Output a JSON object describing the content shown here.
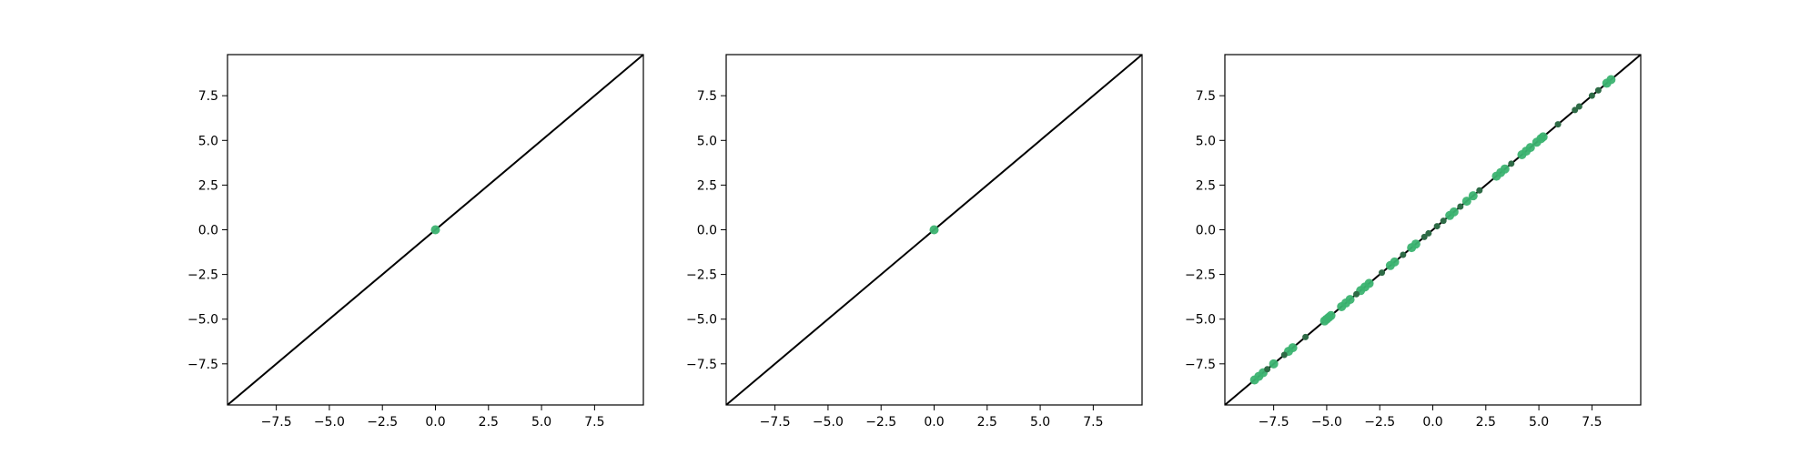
{
  "chart_data": [
    {
      "type": "scatter",
      "title": "",
      "xlabel": "",
      "ylabel": "",
      "xlim": [
        -9.8,
        9.8
      ],
      "ylim": [
        -9.8,
        9.8
      ],
      "xticks": [
        -7.5,
        -5.0,
        -2.5,
        0.0,
        2.5,
        5.0,
        7.5
      ],
      "xtick_labels": [
        "−7.5",
        "−5.0",
        "−2.5",
        "0.0",
        "2.5",
        "5.0",
        "7.5"
      ],
      "yticks": [
        7.5,
        5.0,
        2.5,
        0.0,
        -2.5,
        -5.0,
        -7.5
      ],
      "ytick_labels": [
        "7.5",
        "5.0",
        "2.5",
        "0.0",
        "−2.5",
        "−5.0",
        "−7.5"
      ],
      "grid": false,
      "reference_line": {
        "from": [
          -9.8,
          -9.8
        ],
        "to": [
          9.8,
          9.8
        ],
        "color": "#000000"
      },
      "series": [
        {
          "color": "#3cb371",
          "points": [
            [
              0.0,
              0.0
            ]
          ]
        }
      ]
    },
    {
      "type": "scatter",
      "title": "",
      "xlabel": "",
      "ylabel": "",
      "xlim": [
        -9.8,
        9.8
      ],
      "ylim": [
        -9.8,
        9.8
      ],
      "xticks": [
        -7.5,
        -5.0,
        -2.5,
        0.0,
        2.5,
        5.0,
        7.5
      ],
      "xtick_labels": [
        "−7.5",
        "−5.0",
        "−2.5",
        "0.0",
        "2.5",
        "5.0",
        "7.5"
      ],
      "yticks": [
        7.5,
        5.0,
        2.5,
        0.0,
        -2.5,
        -5.0,
        -7.5
      ],
      "ytick_labels": [
        "7.5",
        "5.0",
        "2.5",
        "0.0",
        "−2.5",
        "−5.0",
        "−7.5"
      ],
      "grid": false,
      "reference_line": {
        "from": [
          -9.8,
          -9.8
        ],
        "to": [
          9.8,
          9.8
        ],
        "color": "#000000"
      },
      "series": [
        {
          "color": "#3cb371",
          "points": [
            [
              0.0,
              0.0
            ]
          ]
        }
      ]
    },
    {
      "type": "scatter",
      "title": "",
      "xlabel": "",
      "ylabel": "",
      "xlim": [
        -9.8,
        9.8
      ],
      "ylim": [
        -9.8,
        9.8
      ],
      "xticks": [
        -7.5,
        -5.0,
        -2.5,
        0.0,
        2.5,
        5.0,
        7.5
      ],
      "xtick_labels": [
        "−7.5",
        "−5.0",
        "−2.5",
        "0.0",
        "2.5",
        "5.0",
        "7.5"
      ],
      "yticks": [
        7.5,
        5.0,
        2.5,
        0.0,
        -2.5,
        -5.0,
        -7.5
      ],
      "ytick_labels": [
        "7.5",
        "5.0",
        "2.5",
        "0.0",
        "−2.5",
        "−5.0",
        "−7.5"
      ],
      "grid": false,
      "reference_line": {
        "from": [
          -9.8,
          -9.8
        ],
        "to": [
          9.8,
          9.8
        ],
        "color": "#000000"
      },
      "series": [
        {
          "color": "#3cb371",
          "points": [
            [
              -8.4,
              -8.4
            ],
            [
              -8.2,
              -8.2
            ],
            [
              -8.0,
              -8.0
            ],
            [
              -7.5,
              -7.5
            ],
            [
              -6.8,
              -6.8
            ],
            [
              -6.6,
              -6.6
            ],
            [
              -5.1,
              -5.1
            ],
            [
              -5.0,
              -5.0
            ],
            [
              -4.9,
              -4.9
            ],
            [
              -4.8,
              -4.8
            ],
            [
              -4.3,
              -4.3
            ],
            [
              -4.1,
              -4.1
            ],
            [
              -3.9,
              -3.9
            ],
            [
              -3.4,
              -3.4
            ],
            [
              -3.2,
              -3.2
            ],
            [
              -3.0,
              -3.0
            ],
            [
              -2.0,
              -2.0
            ],
            [
              -1.8,
              -1.8
            ],
            [
              -1.0,
              -1.0
            ],
            [
              -0.8,
              -0.8
            ],
            [
              0.8,
              0.8
            ],
            [
              1.0,
              1.0
            ],
            [
              1.6,
              1.6
            ],
            [
              1.9,
              1.9
            ],
            [
              3.0,
              3.0
            ],
            [
              3.2,
              3.2
            ],
            [
              3.4,
              3.4
            ],
            [
              4.2,
              4.2
            ],
            [
              4.4,
              4.4
            ],
            [
              4.6,
              4.6
            ],
            [
              4.9,
              4.9
            ],
            [
              5.1,
              5.1
            ],
            [
              5.2,
              5.2
            ],
            [
              8.2,
              8.2
            ],
            [
              8.4,
              8.4
            ]
          ]
        },
        {
          "color": "#2e6b46",
          "points": [
            [
              -7.8,
              -7.8
            ],
            [
              -7.0,
              -7.0
            ],
            [
              -6.0,
              -6.0
            ],
            [
              -3.6,
              -3.6
            ],
            [
              -2.4,
              -2.4
            ],
            [
              -1.4,
              -1.4
            ],
            [
              -0.4,
              -0.4
            ],
            [
              -0.2,
              -0.2
            ],
            [
              0.2,
              0.2
            ],
            [
              0.5,
              0.5
            ],
            [
              1.3,
              1.3
            ],
            [
              2.2,
              2.2
            ],
            [
              3.7,
              3.7
            ],
            [
              5.9,
              5.9
            ],
            [
              6.7,
              6.7
            ],
            [
              6.9,
              6.9
            ],
            [
              7.5,
              7.5
            ],
            [
              7.8,
              7.8
            ]
          ]
        }
      ]
    }
  ]
}
